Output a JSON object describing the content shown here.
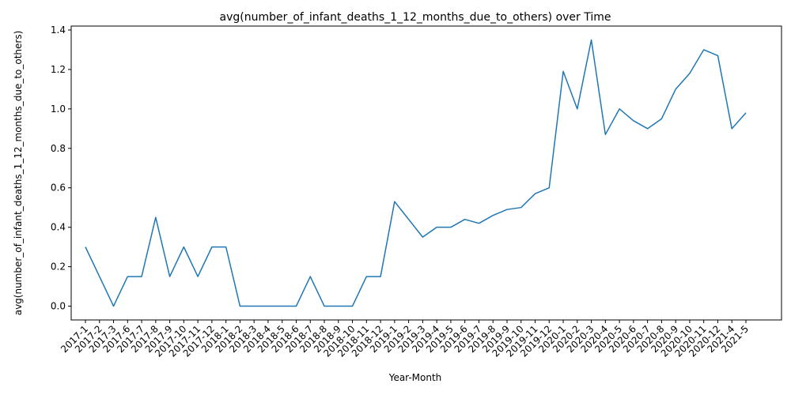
{
  "chart_data": {
    "type": "line",
    "title": "avg(number_of_infant_deaths_1_12_months_due_to_others) over Time",
    "xlabel": "Year-Month",
    "ylabel": "avg(number_of_infant_deaths_1_12_months_due_to_others)",
    "ylim": [
      -0.07,
      1.42
    ],
    "yticks": [
      "0.0",
      "0.2",
      "0.4",
      "0.6",
      "0.8",
      "1.0",
      "1.2",
      "1.4"
    ],
    "ytick_values": [
      0.0,
      0.2,
      0.4,
      0.6,
      0.8,
      1.0,
      1.2,
      1.4
    ],
    "grid": false,
    "color": "#1f77b4",
    "categories": [
      "2017-1",
      "2017-2",
      "2017-3",
      "2017-6",
      "2017-7",
      "2017-8",
      "2017-9",
      "2017-10",
      "2017-11",
      "2017-12",
      "2018-1",
      "2018-2",
      "2018-3",
      "2018-4",
      "2018-5",
      "2018-6",
      "2018-7",
      "2018-8",
      "2018-9",
      "2018-10",
      "2018-11",
      "2018-12",
      "2019-1",
      "2019-2",
      "2019-3",
      "2019-4",
      "2019-5",
      "2019-6",
      "2019-7",
      "2019-8",
      "2019-9",
      "2019-10",
      "2019-11",
      "2019-12",
      "2020-1",
      "2020-2",
      "2020-3",
      "2020-4",
      "2020-5",
      "2020-6",
      "2020-7",
      "2020-8",
      "2020-9",
      "2020-10",
      "2020-11",
      "2020-12",
      "2021-4",
      "2021-5"
    ],
    "values": [
      0.3,
      0.15,
      0.0,
      0.15,
      0.15,
      0.45,
      0.15,
      0.3,
      0.15,
      0.3,
      0.3,
      0.0,
      0.0,
      0.0,
      0.0,
      0.0,
      0.15,
      0.0,
      0.0,
      0.0,
      0.15,
      0.15,
      0.53,
      0.44,
      0.35,
      0.4,
      0.4,
      0.44,
      0.42,
      0.46,
      0.49,
      0.5,
      0.57,
      0.6,
      1.19,
      1.0,
      1.35,
      0.87,
      1.0,
      0.94,
      0.9,
      0.95,
      1.1,
      1.18,
      1.3,
      1.27,
      0.9,
      0.98
    ]
  }
}
